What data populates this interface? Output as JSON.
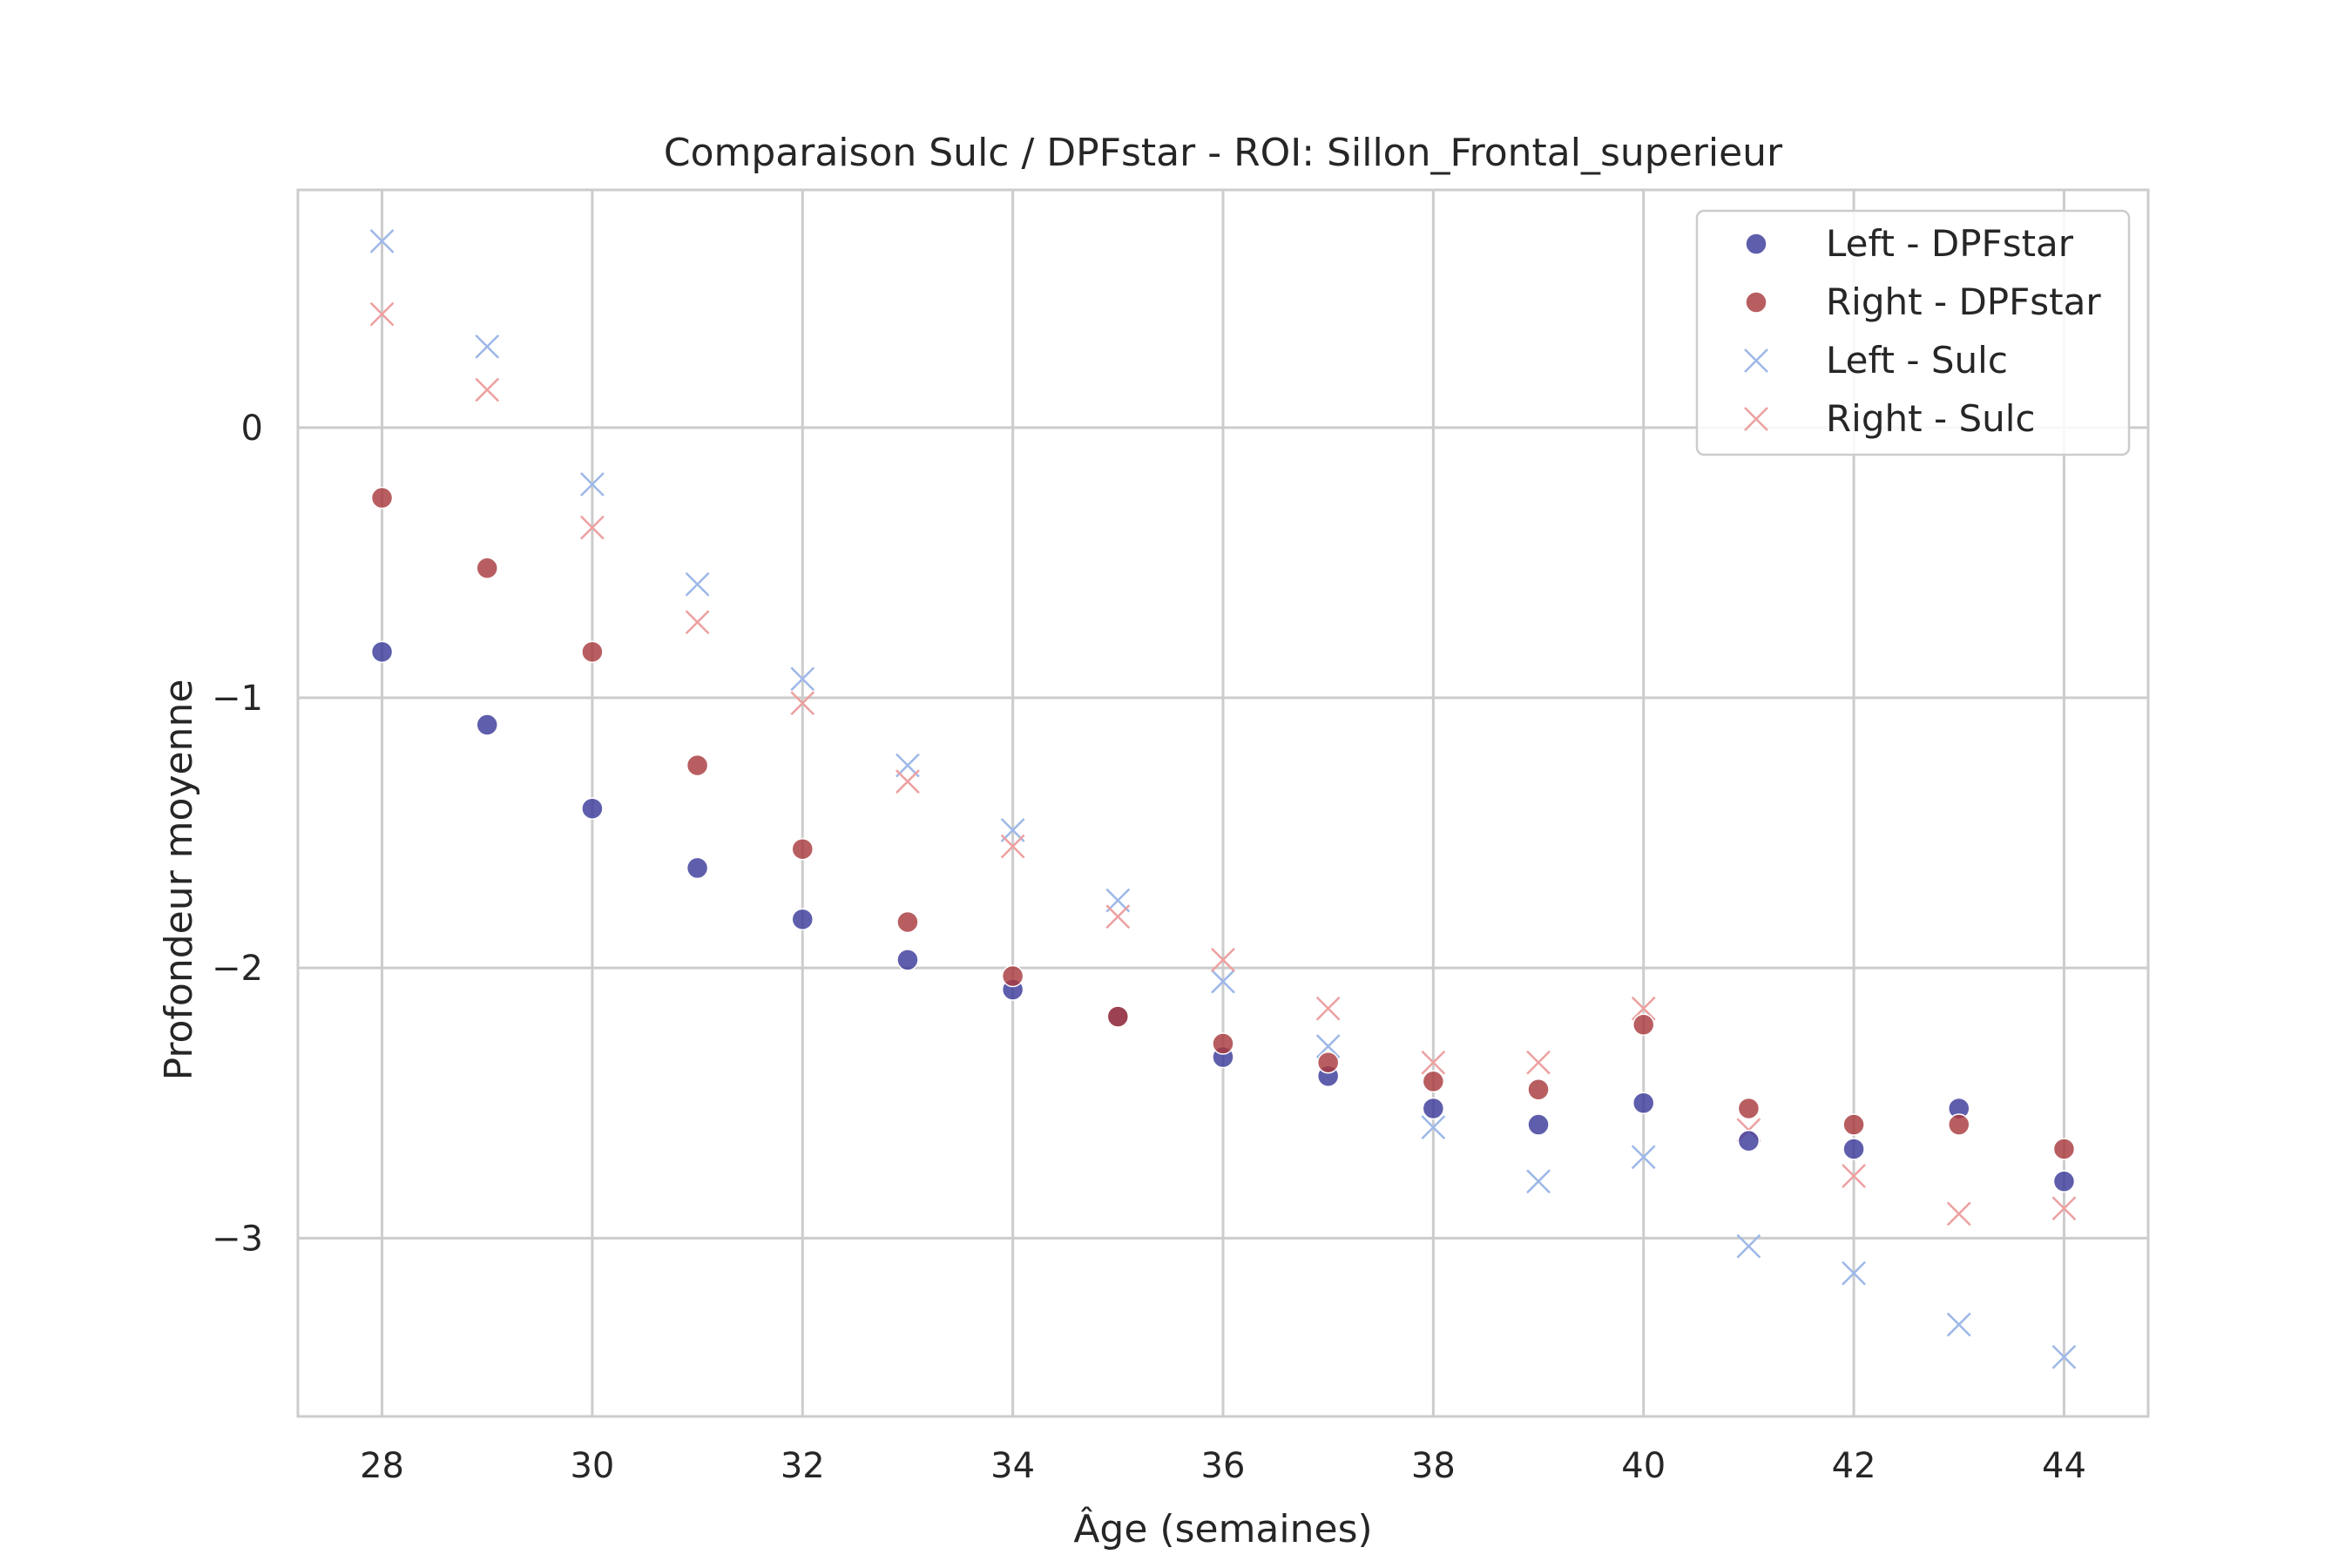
{
  "chart_data": {
    "type": "scatter",
    "title": "Comparaison Sulc / DPFstar - ROI: Sillon_Frontal_superieur",
    "xlabel": "Âge (semaines)",
    "ylabel": "Profondeur moyenne",
    "xlim": [
      27.2,
      44.8
    ],
    "ylim": [
      -3.66,
      0.88
    ],
    "xticks": [
      28,
      30,
      32,
      34,
      36,
      38,
      40,
      42,
      44
    ],
    "yticks": [
      0,
      -1,
      -2,
      -3
    ],
    "ytick_labels": [
      "0",
      "−1",
      "−2",
      "−3"
    ],
    "grid": true,
    "legend_position": "top-right",
    "x": [
      28,
      29,
      30,
      31,
      32,
      33,
      34,
      35,
      36,
      37,
      38,
      39,
      40,
      41,
      42,
      43,
      44
    ],
    "series": [
      {
        "name": "Left - DPFstar",
        "marker": "circle",
        "color": "#3b3a9a",
        "values": [
          -0.83,
          -1.1,
          -1.41,
          -1.63,
          -1.82,
          -1.97,
          -2.08,
          -2.18,
          -2.33,
          -2.4,
          -2.52,
          -2.58,
          -2.5,
          -2.64,
          -2.67,
          -2.52,
          -2.79
        ]
      },
      {
        "name": "Right - DPFstar",
        "marker": "circle",
        "color": "#a83a3e",
        "values": [
          -0.26,
          -0.52,
          -0.83,
          -1.25,
          -1.56,
          -1.83,
          -2.03,
          -2.18,
          -2.28,
          -2.35,
          -2.42,
          -2.45,
          -2.21,
          -2.52,
          -2.58,
          -2.58,
          -2.67
        ]
      },
      {
        "name": "Left - Sulc",
        "marker": "x",
        "color": "#9db8e8",
        "values": [
          0.69,
          0.3,
          -0.21,
          -0.58,
          -0.93,
          -1.25,
          -1.49,
          -1.75,
          -2.05,
          -2.29,
          -2.59,
          -2.79,
          -2.7,
          -3.03,
          -3.13,
          -3.32,
          -3.44
        ]
      },
      {
        "name": "Right - Sulc",
        "marker": "x",
        "color": "#eda0a0",
        "values": [
          0.42,
          0.14,
          -0.37,
          -0.72,
          -1.02,
          -1.31,
          -1.55,
          -1.81,
          -1.97,
          -2.15,
          -2.35,
          -2.35,
          -2.15,
          -2.6,
          -2.77,
          -2.91,
          -2.89
        ]
      }
    ]
  }
}
